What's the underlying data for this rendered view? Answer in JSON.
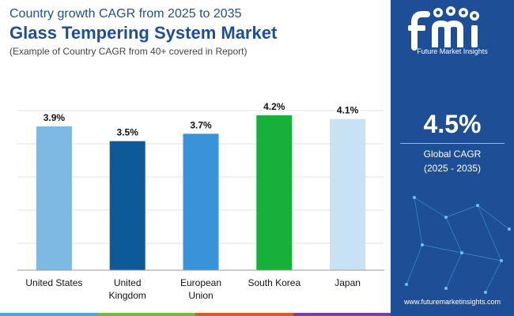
{
  "header": {
    "subtitle": "Country growth CAGR from 2025 to 2035",
    "title": "Glass Tempering System Market",
    "note": "(Example of Country CAGR from 40+ covered in Report)"
  },
  "chart_data": {
    "type": "bar",
    "categories": [
      [
        "United States"
      ],
      [
        "United",
        "Kingdom"
      ],
      [
        "European",
        "Union"
      ],
      [
        "South Korea"
      ],
      [
        "Japan"
      ]
    ],
    "values": [
      3.9,
      3.5,
      3.7,
      4.2,
      4.1
    ],
    "value_labels": [
      "3.9%",
      "3.5%",
      "3.7%",
      "4.2%",
      "4.1%"
    ],
    "colors": [
      "#7db9e3",
      "#0e5a96",
      "#3a93d9",
      "#16b03b",
      "#c6e2f3"
    ],
    "ylim": [
      0,
      4.5
    ],
    "grid": true,
    "xlabel": "",
    "ylabel": ""
  },
  "brand": {
    "logo_text": "Future Market Insights",
    "website": "www.futuremarketinsights.com"
  },
  "stat": {
    "value": "4.5%",
    "label": "Global CAGR",
    "range": "(2025 - 2035)"
  },
  "footer": {
    "stripe_colors": [
      "#4aa8d8",
      "#77b843",
      "#e0572a",
      "#7b3fa0"
    ]
  }
}
